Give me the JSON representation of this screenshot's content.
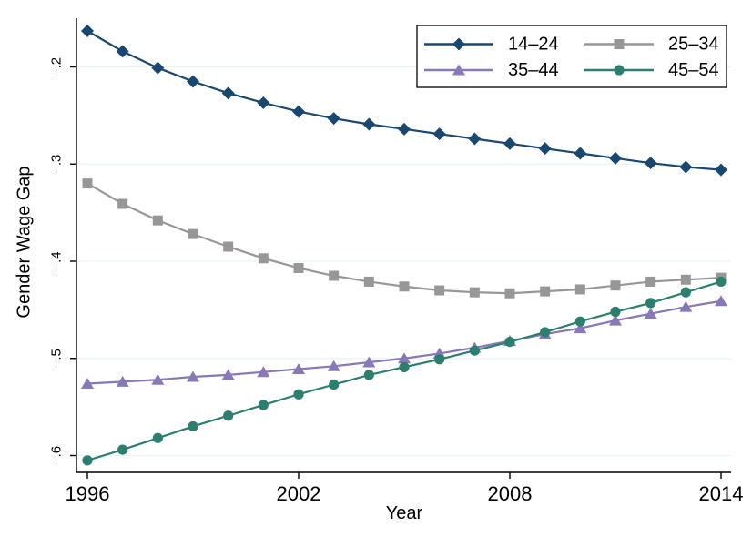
{
  "chart_data": {
    "type": "line",
    "title": "",
    "xlabel": "Year",
    "ylabel": "Gender Wage Gap",
    "xlim": [
      1995.7,
      2014.3
    ],
    "ylim": [
      -0.625,
      -0.145
    ],
    "grid": "horizontal",
    "grid_color": "#e9f2f4",
    "axis_color": "#000000",
    "background_color": "#ffffff",
    "legend_position": "top-right-inside",
    "legend_columns": 2,
    "x_ticks": [
      "1996",
      "2002",
      "2008",
      "2014"
    ],
    "x_tick_values": [
      1996,
      2002,
      2008,
      2014
    ],
    "y_ticks": [
      "−.2",
      "−.3",
      "−.4",
      "−.5",
      "−.6"
    ],
    "y_tick_values": [
      -0.2,
      -0.3,
      -0.4,
      -0.5,
      -0.6
    ],
    "x": [
      1996,
      1997,
      1998,
      1999,
      2000,
      2001,
      2002,
      2003,
      2004,
      2005,
      2006,
      2007,
      2008,
      2009,
      2010,
      2011,
      2012,
      2013,
      2014
    ],
    "series": [
      {
        "name": "14–24",
        "marker": "diamond",
        "color": "#1a476f",
        "values": [
          -0.163,
          -0.184,
          -0.201,
          -0.215,
          -0.227,
          -0.237,
          -0.246,
          -0.253,
          -0.259,
          -0.264,
          -0.269,
          -0.274,
          -0.279,
          -0.284,
          -0.289,
          -0.294,
          -0.299,
          -0.303,
          -0.306
        ]
      },
      {
        "name": "25–34",
        "marker": "square",
        "color": "#979797",
        "values": [
          -0.32,
          -0.341,
          -0.358,
          -0.372,
          -0.385,
          -0.397,
          -0.407,
          -0.415,
          -0.421,
          -0.426,
          -0.43,
          -0.432,
          -0.433,
          -0.431,
          -0.429,
          -0.425,
          -0.421,
          -0.419,
          -0.417
        ]
      },
      {
        "name": "35–44",
        "marker": "triangle",
        "color": "#8878b8",
        "values": [
          -0.526,
          -0.524,
          -0.522,
          -0.519,
          -0.517,
          -0.514,
          -0.511,
          -0.508,
          -0.504,
          -0.5,
          -0.495,
          -0.489,
          -0.482,
          -0.475,
          -0.469,
          -0.461,
          -0.454,
          -0.447,
          -0.441
        ]
      },
      {
        "name": "45–54",
        "marker": "circle",
        "color": "#2c7f6e",
        "values": [
          -0.605,
          -0.594,
          -0.582,
          -0.57,
          -0.559,
          -0.548,
          -0.537,
          -0.527,
          -0.517,
          -0.509,
          -0.501,
          -0.492,
          -0.483,
          -0.473,
          -0.462,
          -0.452,
          -0.443,
          -0.432,
          -0.421
        ]
      }
    ]
  }
}
